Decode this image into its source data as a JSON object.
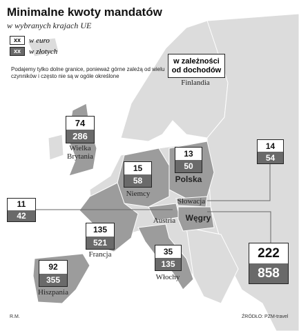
{
  "header": {
    "title": "Minimalne kwoty mandatów",
    "subtitle": "w wybranych krajach UE"
  },
  "legend": [
    {
      "sample": "xx",
      "label": "w euro"
    },
    {
      "sample": "xx",
      "label": "w złotych"
    }
  ],
  "note": "Podajemy tylko dolne granice, ponieważ górne zależą od wielu czynników i często nie są w ogóle określone",
  "countries": [
    {
      "name": "Wielka Brytania",
      "eur": 74,
      "pln": 286
    },
    {
      "name": "Niemcy",
      "eur": 15,
      "pln": 58
    },
    {
      "name": "Polska",
      "eur": 13,
      "pln": 50
    },
    {
      "name": "Słowacja",
      "eur": 14,
      "pln": 54
    },
    {
      "name": "Austria",
      "eur": 11,
      "pln": 42
    },
    {
      "name": "Węgry",
      "eur": 222,
      "pln": 858
    },
    {
      "name": "Francja",
      "eur": 135,
      "pln": 521
    },
    {
      "name": "Włochy",
      "eur": 35,
      "pln": 135
    },
    {
      "name": "Hiszpania",
      "eur": 92,
      "pln": 355
    },
    {
      "name": "Finlandia",
      "note_lines": [
        "w zależności",
        "od dochodów"
      ]
    }
  ],
  "footer": {
    "author": "R.M.",
    "source": "ŹRÓDŁO: PZM-travel"
  }
}
